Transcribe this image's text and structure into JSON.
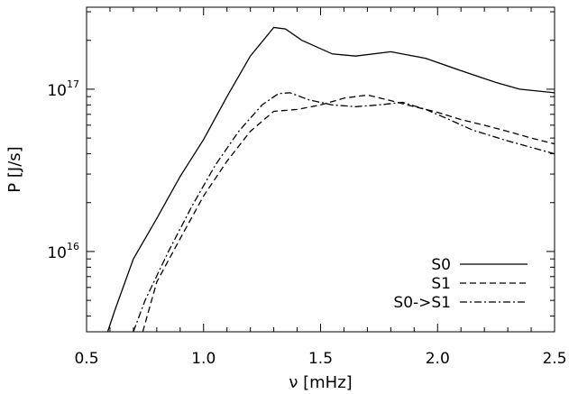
{
  "chart_data": {
    "type": "line",
    "xlabel": "ν [mHz]",
    "ylabel": "P [J/s]",
    "y_scale": "log",
    "xlim": [
      0.5,
      2.5
    ],
    "ylim": [
      3200000000000000.0,
      3.2e+17
    ],
    "x_ticks": [
      {
        "value": 0.5,
        "label": "0.5"
      },
      {
        "value": 1.0,
        "label": "1.0"
      },
      {
        "value": 1.5,
        "label": "1.5"
      },
      {
        "value": 2.0,
        "label": "2.0"
      },
      {
        "value": 2.5,
        "label": "2.5"
      }
    ],
    "y_ticks": [
      {
        "value": 1e+16,
        "base": "10",
        "exp": "16"
      },
      {
        "value": 1e+17,
        "base": "10",
        "exp": "17"
      }
    ],
    "grid": false,
    "legend_position": "bottom-right",
    "series": [
      {
        "name": "S0",
        "dash": "solid",
        "x": [
          0.59,
          0.62,
          0.7,
          0.8,
          0.9,
          1.0,
          1.1,
          1.2,
          1.3,
          1.35,
          1.42,
          1.55,
          1.65,
          1.8,
          1.95,
          2.1,
          2.25,
          2.35,
          2.5
        ],
        "y": [
          3200000000000000.0,
          4300000000000000.0,
          9000000000000000.0,
          1.6e+16,
          2.9e+16,
          4.9e+16,
          9e+16,
          1.6e+17,
          2.4e+17,
          2.35e+17,
          2e+17,
          1.65e+17,
          1.6e+17,
          1.7e+17,
          1.55e+17,
          1.3e+17,
          1.1e+17,
          1e+17,
          9.5e+16
        ]
      },
      {
        "name": "S1",
        "dash": "dashed",
        "x": [
          0.74,
          0.8,
          0.9,
          1.0,
          1.1,
          1.2,
          1.3,
          1.4,
          1.5,
          1.6,
          1.7,
          1.8,
          1.9,
          2.0,
          2.1,
          2.2,
          2.3,
          2.4,
          2.5
        ],
        "y": [
          3200000000000000.0,
          6500000000000000.0,
          1.2e+16,
          2.2e+16,
          3.6e+16,
          5.5e+16,
          7.3e+16,
          7.5e+16,
          8e+16,
          8.8e+16,
          9.2e+16,
          8.5e+16,
          7.8e+16,
          7.2e+16,
          6.5e+16,
          6e+16,
          5.5e+16,
          5e+16,
          4.6e+16
        ]
      },
      {
        "name": "S0->S1",
        "dash": "dashdot",
        "x": [
          0.7,
          0.75,
          0.85,
          0.95,
          1.05,
          1.15,
          1.25,
          1.32,
          1.37,
          1.45,
          1.55,
          1.65,
          1.75,
          1.85,
          1.95,
          2.05,
          2.15,
          2.3,
          2.5
        ],
        "y": [
          3200000000000000.0,
          5000000000000000.0,
          1e+16,
          1.9e+16,
          3.4e+16,
          5.5e+16,
          8e+16,
          9.4e+16,
          9.5e+16,
          8.6e+16,
          8e+16,
          7.8e+16,
          8e+16,
          8.3e+16,
          7.5e+16,
          6.5e+16,
          5.6e+16,
          4.8e+16,
          4e+16
        ]
      }
    ]
  }
}
